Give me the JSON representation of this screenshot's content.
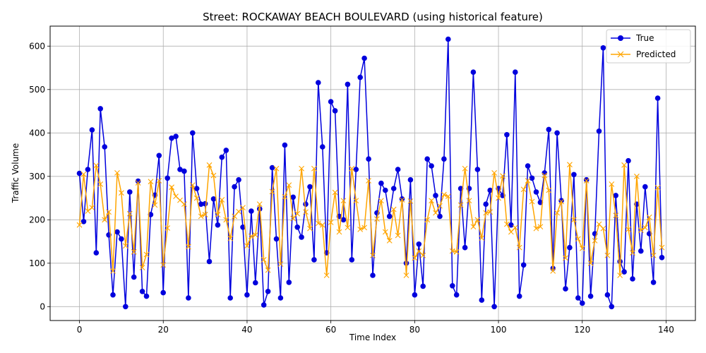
{
  "chart_data": {
    "type": "line",
    "title": "Street: ROCKAWAY BEACH BOULEVARD (using historical feature)",
    "xlabel": "Time Index",
    "ylabel": "Traffic Volume",
    "xlim": [
      -7,
      147
    ],
    "ylim": [
      -32,
      646
    ],
    "xticks": [
      0,
      20,
      40,
      60,
      80,
      100,
      120,
      140
    ],
    "yticks": [
      0,
      100,
      200,
      300,
      400,
      500,
      600
    ],
    "grid": true,
    "legend_position": "top-right",
    "x": [
      0,
      1,
      2,
      3,
      4,
      5,
      6,
      7,
      8,
      9,
      10,
      11,
      12,
      13,
      14,
      15,
      16,
      17,
      18,
      19,
      20,
      21,
      22,
      23,
      24,
      25,
      26,
      27,
      28,
      29,
      30,
      31,
      32,
      33,
      34,
      35,
      36,
      37,
      38,
      39,
      40,
      41,
      42,
      43,
      44,
      45,
      46,
      47,
      48,
      49,
      50,
      51,
      52,
      53,
      54,
      55,
      56,
      57,
      58,
      59,
      60,
      61,
      62,
      63,
      64,
      65,
      66,
      67,
      68,
      69,
      70,
      71,
      72,
      73,
      74,
      75,
      76,
      77,
      78,
      79,
      80,
      81,
      82,
      83,
      84,
      85,
      86,
      87,
      88,
      89,
      90,
      91,
      92,
      93,
      94,
      95,
      96,
      97,
      98,
      99,
      100,
      101,
      102,
      103,
      104,
      105,
      106,
      107,
      108,
      109,
      110,
      111,
      112,
      113,
      114,
      115,
      116,
      117,
      118,
      119,
      120,
      121,
      122,
      123,
      124,
      125,
      126,
      127,
      128,
      129,
      130,
      131,
      132,
      133,
      134,
      135,
      136,
      137,
      138,
      139
    ],
    "series": [
      {
        "name": "True",
        "color": "#0000dd",
        "marker": "circle",
        "values": [
          307,
          196,
          316,
          407,
          124,
          456,
          368,
          165,
          27,
          172,
          156,
          0,
          264,
          68,
          289,
          35,
          24,
          212,
          257,
          348,
          32,
          296,
          388,
          392,
          316,
          312,
          20,
          400,
          272,
          236,
          237,
          104,
          248,
          188,
          344,
          360,
          20,
          276,
          292,
          183,
          27,
          220,
          55,
          225,
          4,
          35,
          320,
          156,
          20,
          372,
          56,
          252,
          183,
          160,
          236,
          276,
          108,
          516,
          368,
          124,
          472,
          451,
          208,
          200,
          512,
          108,
          316,
          528,
          572,
          340,
          72,
          216,
          284,
          268,
          208,
          272,
          316,
          248,
          100,
          292,
          27,
          144,
          47,
          340,
          324,
          256,
          208,
          340,
          616,
          48,
          27,
          272,
          136,
          272,
          540,
          316,
          15,
          236,
          268,
          0,
          272,
          256,
          396,
          188,
          540,
          24,
          96,
          324,
          296,
          264,
          240,
          308,
          408,
          88,
          400,
          244,
          41,
          136,
          304,
          20,
          8,
          292,
          24,
          168,
          404,
          596,
          27,
          0,
          256,
          104,
          80,
          336,
          64,
          236,
          128,
          276,
          168,
          56,
          480,
          113
        ]
      },
      {
        "name": "Predicted",
        "color": "#ffa500",
        "marker": "x",
        "values": [
          188,
          305,
          220,
          228,
          325,
          282,
          200,
          218,
          82,
          308,
          262,
          140,
          214,
          126,
          285,
          90,
          120,
          288,
          234,
          290,
          96,
          181,
          275,
          254,
          245,
          236,
          138,
          280,
          250,
          208,
          212,
          326,
          302,
          212,
          246,
          200,
          157,
          208,
          219,
          228,
          140,
          162,
          165,
          236,
          108,
          84,
          265,
          318,
          98,
          253,
          280,
          203,
          214,
          318,
          218,
          180,
          318,
          192,
          188,
          72,
          194,
          263,
          172,
          244,
          182,
          318,
          244,
          178,
          182,
          290,
          118,
          202,
          244,
          172,
          152,
          224,
          164,
          246,
          72,
          243,
          112,
          128,
          118,
          200,
          244,
          216,
          232,
          258,
          254,
          128,
          126,
          234,
          318,
          244,
          184,
          200,
          158,
          216,
          218,
          308,
          250,
          301,
          190,
          172,
          182,
          136,
          270,
          290,
          242,
          180,
          184,
          302,
          268,
          82,
          216,
          242,
          112,
          327,
          200,
          156,
          134,
          290,
          100,
          152,
          190,
          180,
          118,
          282,
          210,
          72,
          326,
          178,
          124,
          300,
          176,
          182,
          206,
          118,
          274,
          136
        ]
      }
    ]
  }
}
